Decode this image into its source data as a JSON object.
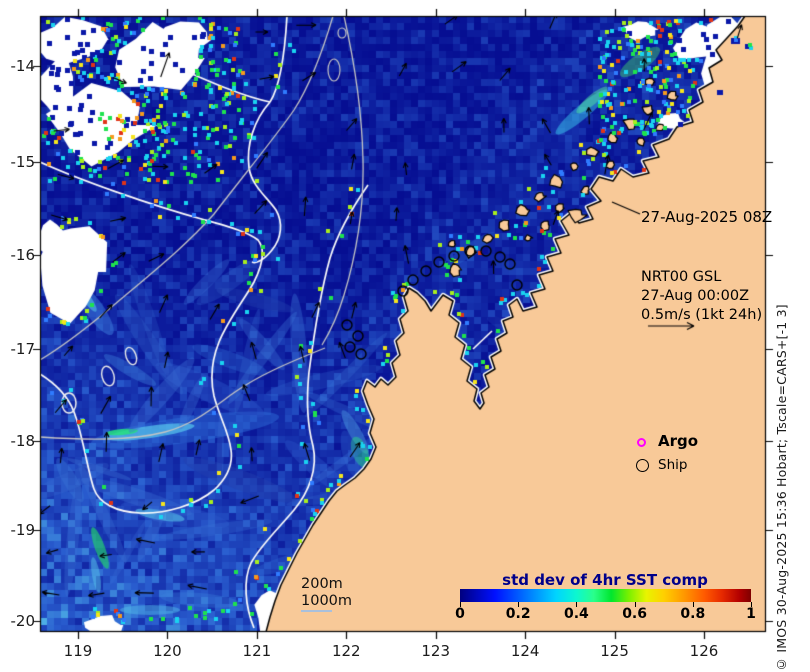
{
  "figure": {
    "x_axis": {
      "ticks": [
        "119",
        "120",
        "121",
        "122",
        "123",
        "124",
        "125",
        "126"
      ]
    },
    "y_axis": {
      "ticks": [
        "-14",
        "-15",
        "-16",
        "-17",
        "-18",
        "-19",
        "-20"
      ]
    },
    "annotations": {
      "obs_time": "27-Aug-2025 08Z",
      "model_name": "NRT00 GSL",
      "model_time": "27-Aug 00:00Z",
      "vector_scale": "0.5m/s (1kt 24h)"
    },
    "depth_labels": {
      "d200": "200m",
      "d1000": "1000m"
    },
    "legend": {
      "argo": "Argo",
      "ship": "Ship"
    },
    "colorbar": {
      "title": "std dev of 4hr SST comp",
      "ticks": [
        "0",
        "0.2",
        "0.4",
        "0.6",
        "0.8",
        "1"
      ],
      "range": [
        0,
        1
      ],
      "gradient": [
        "#00007f",
        "#0010ff",
        "#0080ff",
        "#00d4ff",
        "#0cf7d0",
        "#00e62e",
        "#7af000",
        "#e8f400",
        "#ffd000",
        "#ff9800",
        "#ff5a00",
        "#e62900",
        "#7f0000"
      ]
    },
    "credit": "© IMOS 30-Aug-2025 15:36 Hobart; Tscale=CARS+[-1 3]",
    "colors": {
      "land": "#f8c998",
      "ocean_deep": "#060e92",
      "argo_marker": "#ff00ff",
      "colorbar_title": "#00008b",
      "no_data": "#ffffff"
    }
  },
  "chart_data": {
    "type": "heatmap",
    "title": "std dev of 4hr SST comp",
    "xlim": [
      118.6,
      126.7
    ],
    "ylim": [
      -20.1,
      -13.5
    ],
    "x_ticks": [
      119,
      120,
      121,
      122,
      123,
      124,
      125,
      126
    ],
    "y_ticks": [
      -14,
      -15,
      -16,
      -17,
      -18,
      -19,
      -20
    ],
    "colorbar_range": [
      0,
      1
    ],
    "colorbar_ticks": [
      0,
      0.2,
      0.4,
      0.6,
      0.8,
      1
    ],
    "legend_entries": [
      "Argo",
      "Ship"
    ],
    "contour_levels": [
      "200m",
      "1000m"
    ],
    "annotations": [
      "27-Aug-2025 08Z",
      "NRT00 GSL",
      "27-Aug 00:00Z",
      "0.5m/s (1kt 24h)"
    ]
  }
}
